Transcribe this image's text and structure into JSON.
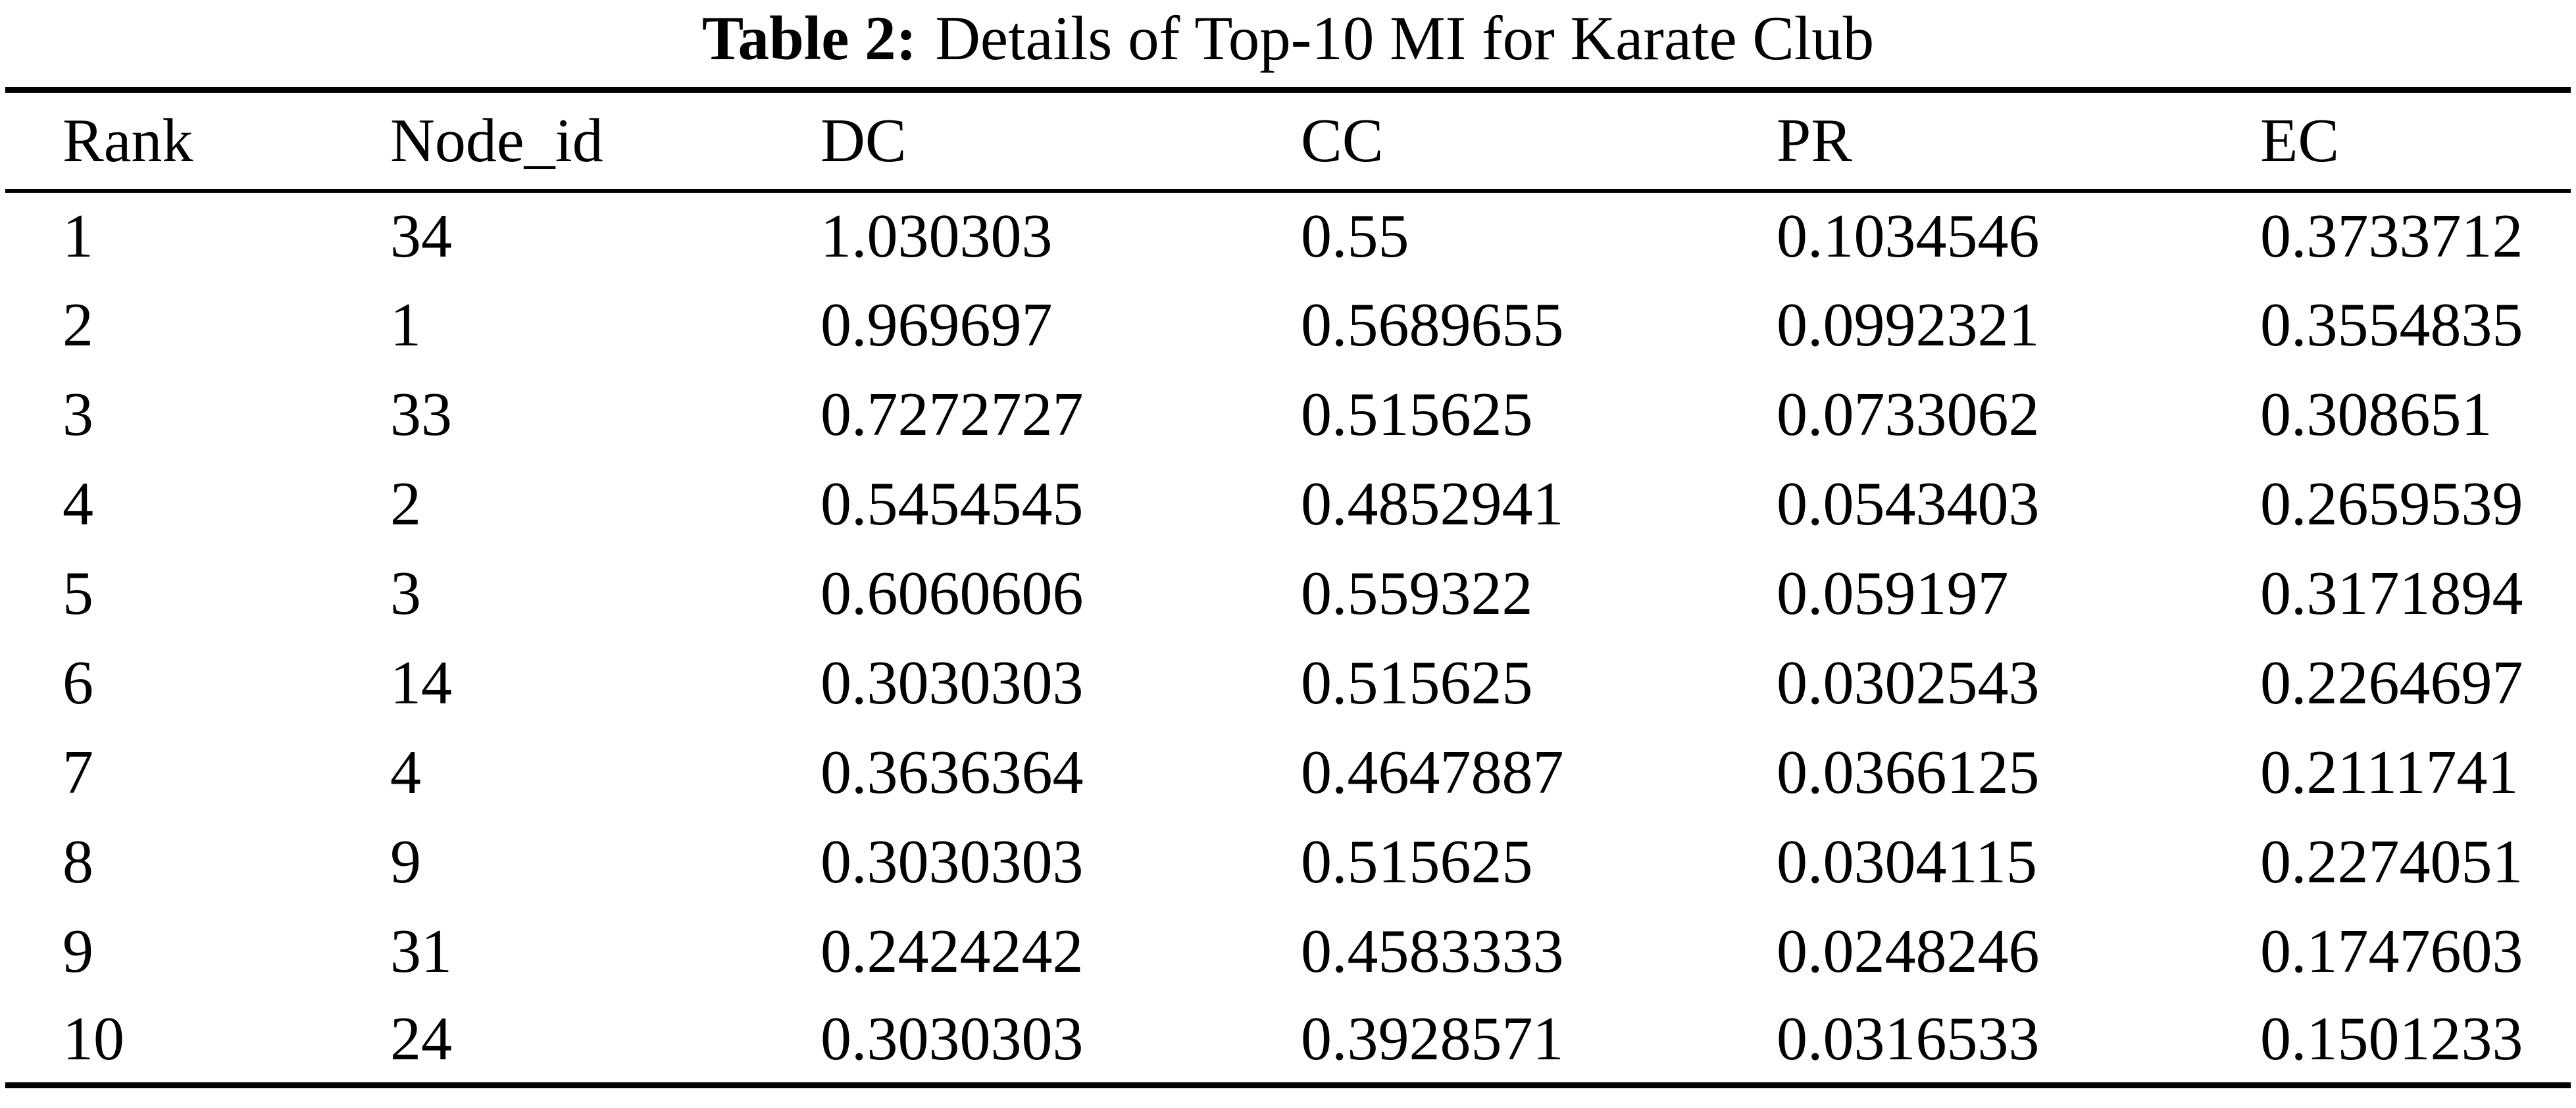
{
  "table": {
    "title_label": "Table 2:",
    "title_text": "Details of Top-10 MI for Karate Club",
    "columns": [
      "Rank",
      "Node_id",
      "DC",
      "CC",
      "PR",
      "EC"
    ],
    "rows": [
      [
        "1",
        "34",
        "1.030303",
        "0.55",
        "0.1034546",
        "0.3733712"
      ],
      [
        "2",
        "1",
        "0.969697",
        "0.5689655",
        "0.0992321",
        "0.3554835"
      ],
      [
        "3",
        "33",
        "0.7272727",
        "0.515625",
        "0.0733062",
        "0.308651"
      ],
      [
        "4",
        "2",
        "0.5454545",
        "0.4852941",
        "0.0543403",
        "0.2659539"
      ],
      [
        "5",
        "3",
        "0.6060606",
        "0.559322",
        "0.059197",
        "0.3171894"
      ],
      [
        "6",
        "14",
        "0.3030303",
        "0.515625",
        "0.0302543",
        "0.2264697"
      ],
      [
        "7",
        "4",
        "0.3636364",
        "0.4647887",
        "0.0366125",
        "0.2111741"
      ],
      [
        "8",
        "9",
        "0.3030303",
        "0.515625",
        "0.0304115",
        "0.2274051"
      ],
      [
        "9",
        "31",
        "0.2424242",
        "0.4583333",
        "0.0248246",
        "0.1747603"
      ],
      [
        "10",
        "24",
        "0.3030303",
        "0.3928571",
        "0.0316533",
        "0.1501233"
      ]
    ]
  },
  "chart_data": {
    "type": "table",
    "title": "Table 2: Details of Top-10 MI for Karate Club",
    "columns": [
      "Rank",
      "Node_id",
      "DC",
      "CC",
      "PR",
      "EC"
    ],
    "rows": [
      [
        1,
        34,
        1.030303,
        0.55,
        0.1034546,
        0.3733712
      ],
      [
        2,
        1,
        0.969697,
        0.5689655,
        0.0992321,
        0.3554835
      ],
      [
        3,
        33,
        0.7272727,
        0.515625,
        0.0733062,
        0.308651
      ],
      [
        4,
        2,
        0.5454545,
        0.4852941,
        0.0543403,
        0.2659539
      ],
      [
        5,
        3,
        0.6060606,
        0.559322,
        0.059197,
        0.3171894
      ],
      [
        6,
        14,
        0.3030303,
        0.515625,
        0.0302543,
        0.2264697
      ],
      [
        7,
        4,
        0.3636364,
        0.4647887,
        0.0366125,
        0.2111741
      ],
      [
        8,
        9,
        0.3030303,
        0.515625,
        0.0304115,
        0.2274051
      ],
      [
        9,
        31,
        0.2424242,
        0.4583333,
        0.0248246,
        0.1747603
      ],
      [
        10,
        24,
        0.3030303,
        0.3928571,
        0.0316533,
        0.1501233
      ]
    ]
  },
  "colors": {
    "text": "#000000",
    "background": "#ffffff",
    "rule": "#000000"
  }
}
